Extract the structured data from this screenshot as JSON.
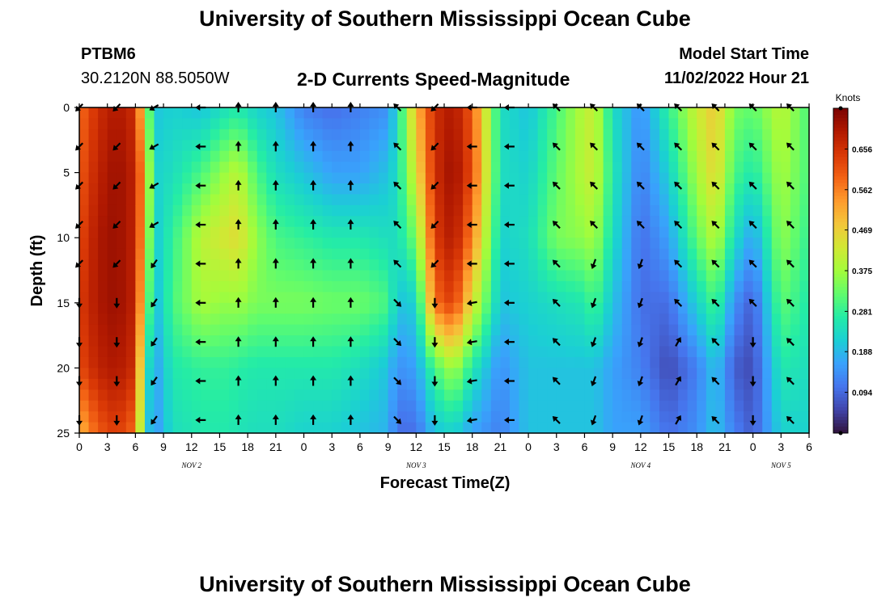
{
  "header": {
    "title": "University of Southern Mississippi Ocean Cube",
    "station_id": "PTBM6",
    "station_coords": "30.2120N  88.5050W",
    "chart_title": "2-D Currents Speed-Magnitude",
    "model_start_label": "Model Start Time",
    "model_start_value": "11/02/2022 Hour 21"
  },
  "footer": {
    "title": "University of Southern Mississippi Ocean Cube"
  },
  "chart_data": {
    "type": "heatmap",
    "title": "2-D Currents Speed-Magnitude",
    "xlabel": "Forecast Time(Z)",
    "ylabel": "Depth (ft)",
    "x_range_hours": [
      0,
      78
    ],
    "y_range_ft": [
      0,
      25
    ],
    "y_inverted": true,
    "x_ticks": [
      "0",
      "3",
      "6",
      "9",
      "12",
      "15",
      "18",
      "21",
      "0",
      "3",
      "6",
      "9",
      "12",
      "15",
      "18",
      "21",
      "0",
      "3",
      "6",
      "9",
      "12",
      "15",
      "18",
      "21",
      "0",
      "3",
      "6"
    ],
    "y_ticks": [
      "0",
      "5",
      "10",
      "15",
      "20",
      "25"
    ],
    "day_labels": [
      {
        "label": "NOV 2",
        "hour": 12
      },
      {
        "label": "NOV 3",
        "hour": 36
      },
      {
        "label": "NOV 4",
        "hour": 60
      },
      {
        "label": "NOV 5",
        "hour": 75
      }
    ],
    "colorbar": {
      "title": "Knots",
      "min": 0.0,
      "max": 0.75,
      "ticks": [
        "0.656",
        "0.562",
        "0.469",
        "0.375",
        "0.281",
        "0.188",
        "0.094"
      ],
      "colors": [
        "#30123b",
        "#4145ab",
        "#4675ed",
        "#39a2fc",
        "#1bcfd4",
        "#24eca6",
        "#61fc6c",
        "#a4fc3b",
        "#d1e834",
        "#f3c63a",
        "#fe9b2d",
        "#f36315",
        "#d93806",
        "#b11901",
        "#7a0402"
      ]
    },
    "speed_columns": {
      "hours": [
        0,
        2,
        4,
        6,
        7,
        8,
        10,
        13,
        16,
        17,
        19,
        21,
        24,
        27,
        30,
        33,
        34,
        36,
        38,
        40,
        42,
        45,
        48,
        51,
        54,
        55,
        57,
        60,
        63,
        66,
        68,
        70,
        72,
        75,
        78
      ],
      "depths_ft": [
        0,
        5,
        10,
        15,
        20,
        25
      ],
      "values_knots": [
        [
          0.58,
          0.6,
          0.62,
          0.64,
          0.62,
          0.5
        ],
        [
          0.66,
          0.68,
          0.7,
          0.7,
          0.68,
          0.6
        ],
        [
          0.7,
          0.72,
          0.72,
          0.72,
          0.7,
          0.64
        ],
        [
          0.66,
          0.68,
          0.68,
          0.68,
          0.66,
          0.58
        ],
        [
          0.42,
          0.5,
          0.48,
          0.42,
          0.3,
          0.24
        ],
        [
          0.2,
          0.22,
          0.2,
          0.18,
          0.15,
          0.14
        ],
        [
          0.22,
          0.24,
          0.28,
          0.3,
          0.26,
          0.24
        ],
        [
          0.2,
          0.3,
          0.4,
          0.38,
          0.28,
          0.26
        ],
        [
          0.25,
          0.38,
          0.44,
          0.36,
          0.28,
          0.26
        ],
        [
          0.26,
          0.4,
          0.45,
          0.37,
          0.27,
          0.25
        ],
        [
          0.22,
          0.3,
          0.36,
          0.34,
          0.26,
          0.24
        ],
        [
          0.2,
          0.24,
          0.3,
          0.34,
          0.26,
          0.24
        ],
        [
          0.12,
          0.2,
          0.28,
          0.34,
          0.26,
          0.22
        ],
        [
          0.1,
          0.16,
          0.26,
          0.33,
          0.26,
          0.22
        ],
        [
          0.12,
          0.16,
          0.26,
          0.33,
          0.24,
          0.2
        ],
        [
          0.14,
          0.2,
          0.24,
          0.3,
          0.2,
          0.18
        ],
        [
          0.24,
          0.24,
          0.24,
          0.2,
          0.14,
          0.1
        ],
        [
          0.5,
          0.44,
          0.34,
          0.22,
          0.16,
          0.1
        ],
        [
          0.66,
          0.66,
          0.64,
          0.58,
          0.3,
          0.2
        ],
        [
          0.7,
          0.72,
          0.7,
          0.64,
          0.38,
          0.22
        ],
        [
          0.6,
          0.62,
          0.56,
          0.44,
          0.26,
          0.16
        ],
        [
          0.24,
          0.24,
          0.22,
          0.2,
          0.14,
          0.12
        ],
        [
          0.2,
          0.22,
          0.24,
          0.22,
          0.2,
          0.2
        ],
        [
          0.3,
          0.32,
          0.34,
          0.24,
          0.2,
          0.2
        ],
        [
          0.4,
          0.4,
          0.36,
          0.26,
          0.2,
          0.2
        ],
        [
          0.42,
          0.42,
          0.38,
          0.3,
          0.2,
          0.2
        ],
        [
          0.24,
          0.26,
          0.24,
          0.2,
          0.16,
          0.16
        ],
        [
          0.14,
          0.12,
          0.1,
          0.1,
          0.12,
          0.16
        ],
        [
          0.28,
          0.22,
          0.16,
          0.1,
          0.06,
          0.1
        ],
        [
          0.42,
          0.38,
          0.32,
          0.22,
          0.12,
          0.14
        ],
        [
          0.48,
          0.46,
          0.4,
          0.3,
          0.2,
          0.2
        ],
        [
          0.34,
          0.3,
          0.24,
          0.14,
          0.08,
          0.12
        ],
        [
          0.32,
          0.26,
          0.16,
          0.08,
          0.06,
          0.08
        ],
        [
          0.4,
          0.38,
          0.36,
          0.32,
          0.26,
          0.22
        ],
        [
          0.3,
          0.3,
          0.28,
          0.26,
          0.24,
          0.22
        ]
      ]
    },
    "direction_columns": {
      "hours": [
        0,
        4,
        8,
        13,
        17,
        21,
        25,
        29,
        34,
        38,
        42,
        46,
        51,
        55,
        60,
        64,
        68,
        72,
        76
      ],
      "depths_ft": [
        0,
        3,
        6,
        9,
        12,
        15,
        18,
        21,
        24
      ],
      "angles_deg": [
        225,
        225,
        240,
        270,
        0,
        0,
        0,
        0,
        315,
        225,
        270,
        270,
        315,
        315,
        315,
        315,
        315,
        315,
        315
      ],
      "depth_override": [
        {
          "hours_from": 0,
          "hours_to": 8,
          "depth_from": 15,
          "angle": 180
        },
        {
          "hours_from": 8,
          "hours_to": 9,
          "depth_from": 12,
          "angle": 215
        },
        {
          "hours_from": 34,
          "hours_to": 36,
          "depth_from": 15,
          "angle": 135
        },
        {
          "hours_from": 38,
          "hours_to": 39,
          "depth_from": 15,
          "angle": 180
        },
        {
          "hours_from": 42,
          "hours_to": 43,
          "depth_from": 15,
          "angle": 260
        },
        {
          "hours_from": 55,
          "hours_to": 61,
          "depth_from": 12,
          "angle": 200
        },
        {
          "hours_from": 64,
          "hours_to": 65,
          "depth_from": 18,
          "angle": 30
        },
        {
          "hours_from": 72,
          "hours_to": 73,
          "depth_from": 18,
          "angle": 180
        }
      ]
    }
  }
}
